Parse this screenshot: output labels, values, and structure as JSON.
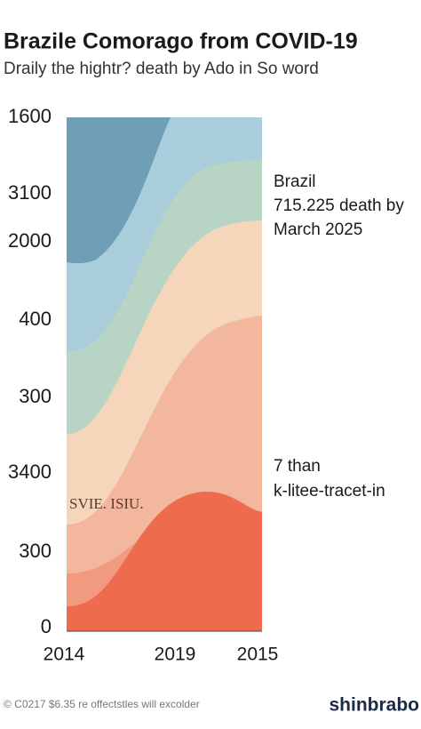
{
  "header": {
    "title": "Brazile Comorago from COVID-19",
    "subtitle": "Draily the hightr? death by Ado in So word"
  },
  "y_axis_labels": [
    "1600",
    "3100",
    "2000",
    "400",
    "300",
    "3400",
    "300",
    "0"
  ],
  "x_axis_labels": [
    "2014",
    "2019",
    "2015"
  ],
  "annotations": {
    "top": [
      "Brazil",
      "715.225 death by",
      "March 2025"
    ],
    "bottom": [
      "7 than",
      "k-litee-tracet-in"
    ],
    "inner": "SVIE. ISIU."
  },
  "footer": {
    "note": "© C0217 $6.35 re offectstles will excolder",
    "brand": "shinbrabo"
  }
}
